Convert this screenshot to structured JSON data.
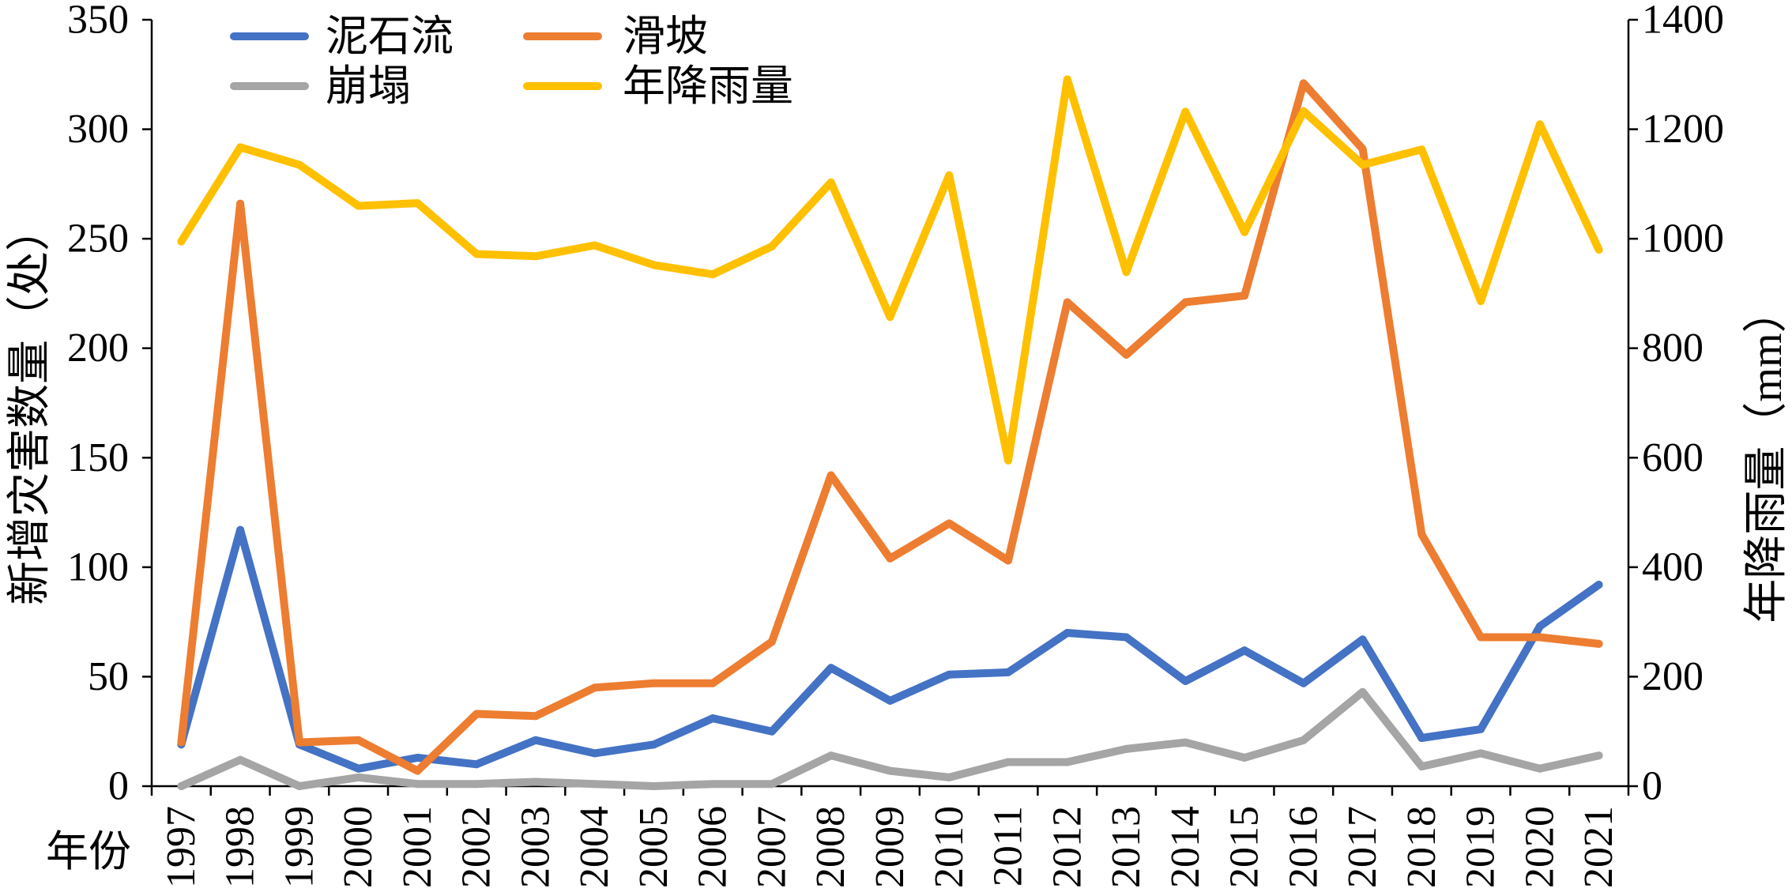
{
  "chart_data": {
    "type": "line",
    "categories": [
      "1997",
      "1998",
      "1999",
      "2000",
      "2001",
      "2002",
      "2003",
      "2004",
      "2005",
      "2006",
      "2007",
      "2008",
      "2009",
      "2010",
      "2011",
      "2012",
      "2013",
      "2014",
      "2015",
      "2016",
      "2017",
      "2018",
      "2019",
      "2020",
      "2021"
    ],
    "xlabel": "年份",
    "ylabel": "新增灾害数量（处）",
    "y2label": "年降雨量（mm）",
    "ylim": [
      0,
      350
    ],
    "y2lim": [
      0,
      1400
    ],
    "yticks": [
      0,
      50,
      100,
      150,
      200,
      250,
      300,
      350
    ],
    "y2ticks": [
      0,
      200,
      400,
      600,
      800,
      1000,
      1200,
      1400
    ],
    "grid": false,
    "legend": "top-left",
    "series": [
      {
        "name": "泥石流",
        "secondary_axis": false,
        "color": "#4472C4",
        "values": [
          19,
          117,
          19,
          8,
          13,
          10,
          21,
          15,
          19,
          31,
          25,
          54,
          39,
          51,
          52,
          70,
          68,
          48,
          62,
          47,
          67,
          22,
          26,
          73,
          92
        ]
      },
      {
        "name": "滑坡",
        "secondary_axis": false,
        "color": "#ED7D31",
        "values": [
          20,
          266,
          20,
          21,
          7,
          33,
          32,
          45,
          47,
          47,
          66,
          142,
          104,
          120,
          103,
          221,
          197,
          221,
          224,
          321,
          291,
          115,
          68,
          68,
          65
        ]
      },
      {
        "name": "崩塌",
        "secondary_axis": false,
        "color": "#A5A5A5",
        "values": [
          0,
          12,
          0,
          4,
          1,
          1,
          2,
          1,
          0,
          1,
          1,
          14,
          7,
          4,
          11,
          11,
          17,
          20,
          13,
          21,
          43,
          9,
          15,
          8,
          14
        ]
      },
      {
        "name": "年降雨量",
        "secondary_axis": true,
        "color": "#FFC000",
        "values": [
          995,
          1167,
          1135,
          1060,
          1065,
          972,
          968,
          988,
          952,
          935,
          986,
          1103,
          857,
          1116,
          595,
          1291,
          939,
          1232,
          1012,
          1233,
          1135,
          1163,
          886,
          1209,
          980
        ]
      }
    ]
  }
}
